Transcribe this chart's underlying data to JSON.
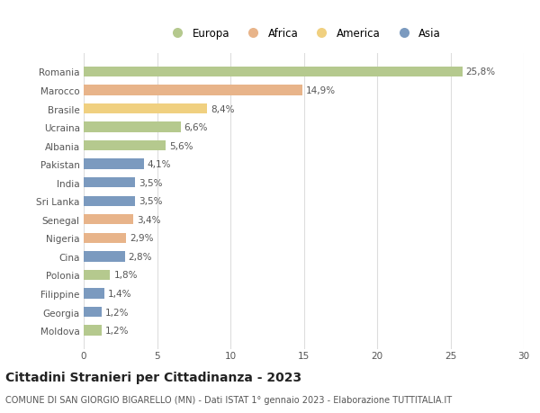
{
  "categories": [
    "Romania",
    "Marocco",
    "Brasile",
    "Ucraina",
    "Albania",
    "Pakistan",
    "India",
    "Sri Lanka",
    "Senegal",
    "Nigeria",
    "Cina",
    "Polonia",
    "Filippine",
    "Georgia",
    "Moldova"
  ],
  "values": [
    25.8,
    14.9,
    8.4,
    6.6,
    5.6,
    4.1,
    3.5,
    3.5,
    3.4,
    2.9,
    2.8,
    1.8,
    1.4,
    1.2,
    1.2
  ],
  "labels": [
    "25,8%",
    "14,9%",
    "8,4%",
    "6,6%",
    "5,6%",
    "4,1%",
    "3,5%",
    "3,5%",
    "3,4%",
    "2,9%",
    "2,8%",
    "1,8%",
    "1,4%",
    "1,2%",
    "1,2%"
  ],
  "continent": [
    "Europa",
    "Africa",
    "America",
    "Europa",
    "Europa",
    "Asia",
    "Asia",
    "Asia",
    "Africa",
    "Africa",
    "Asia",
    "Europa",
    "Asia",
    "Asia",
    "Europa"
  ],
  "colors": {
    "Europa": "#b5c98e",
    "Africa": "#e8b48a",
    "America": "#f0d080",
    "Asia": "#7b9abf"
  },
  "legend_order": [
    "Europa",
    "Africa",
    "America",
    "Asia"
  ],
  "xlim": [
    0,
    30
  ],
  "xticks": [
    0,
    5,
    10,
    15,
    20,
    25,
    30
  ],
  "title": "Cittadini Stranieri per Cittadinanza - 2023",
  "subtitle": "COMUNE DI SAN GIORGIO BIGARELLO (MN) - Dati ISTAT 1° gennaio 2023 - Elaborazione TUTTITALIA.IT",
  "bg_color": "#ffffff",
  "grid_color": "#dddddd",
  "bar_height": 0.55,
  "label_fontsize": 7.5,
  "tick_fontsize": 7.5,
  "title_fontsize": 10,
  "subtitle_fontsize": 7.0,
  "legend_fontsize": 8.5
}
